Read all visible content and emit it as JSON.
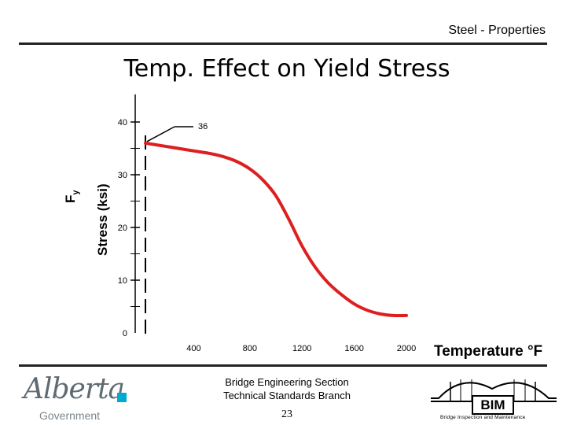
{
  "header": {
    "section": "Steel - Properties"
  },
  "slide_title": "Temp. Effect on Yield Stress",
  "chart_data": {
    "type": "line",
    "xlabel": "Temperature °F",
    "ylabel_symbol": "F",
    "ylabel_subscript": "y",
    "ylabel": "Stress (ksi)",
    "xlim": [
      0,
      2000
    ],
    "ylim": [
      0,
      40
    ],
    "x_ticks": [
      400,
      800,
      1200,
      1600,
      2000
    ],
    "y_ticks": [
      0,
      10,
      20,
      30,
      40
    ],
    "annotation": {
      "text": "36",
      "x": 0,
      "y": 36
    },
    "series": [
      {
        "color": "#dd1f1f",
        "x": [
          0,
          100,
          200,
          300,
          400,
          500,
          600,
          700,
          800,
          900,
          1000,
          1100,
          1200,
          1300,
          1400,
          1500,
          1600,
          1700,
          1800,
          1900,
          2000
        ],
        "y": [
          36,
          35.6,
          35.2,
          34.8,
          34.4,
          34,
          33.4,
          32.5,
          31.1,
          29,
          26,
          21.5,
          16.5,
          12.5,
          9.5,
          7.3,
          5.5,
          4.3,
          3.6,
          3.3,
          3.3
        ]
      }
    ]
  },
  "footer": {
    "section_line1": "Bridge Engineering Section",
    "section_line2": "Technical Standards Branch",
    "page_number": "23",
    "logo_left_script": "Alberta",
    "logo_left_sub": "Government",
    "logo_right_text": "BIM",
    "logo_right_sub": "Bridge Inspection and Maintenance"
  }
}
